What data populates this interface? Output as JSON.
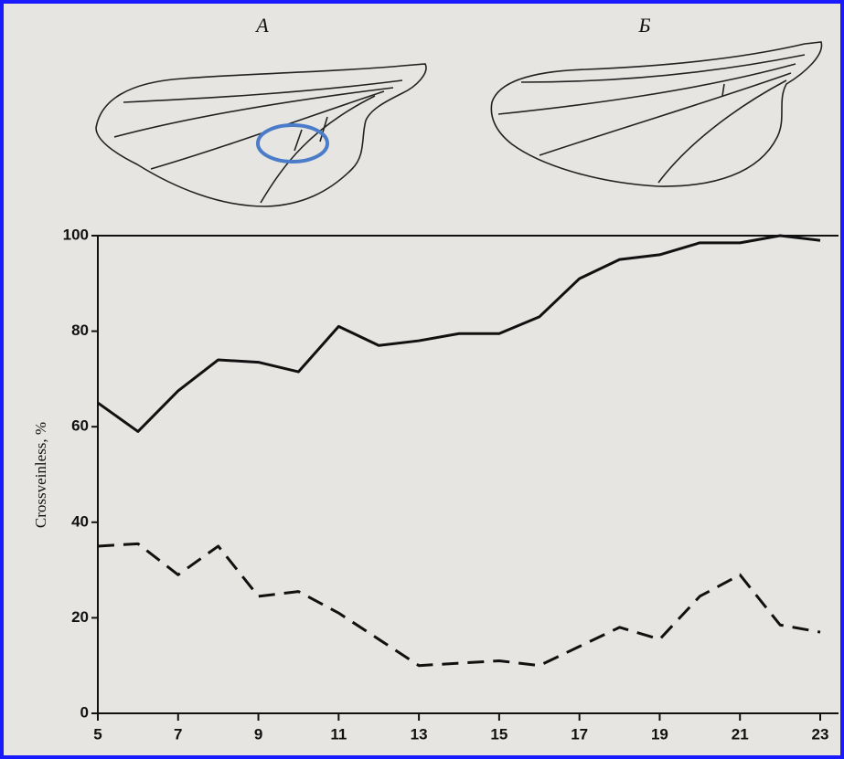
{
  "chart_data": {
    "type": "line",
    "panel_labels": [
      "А",
      "Б"
    ],
    "ylabel": "Crossveinless, %",
    "x": [
      5,
      6,
      7,
      8,
      9,
      10,
      11,
      12,
      13,
      14,
      15,
      16,
      17,
      18,
      19,
      20,
      21,
      22,
      23
    ],
    "series": [
      {
        "color": "#111111",
        "linestyle": "solid",
        "values": [
          65,
          59,
          67.5,
          74,
          73.5,
          71.5,
          81,
          77,
          78,
          79.5,
          79.5,
          83,
          91,
          95,
          96,
          98.5,
          98.5,
          100,
          99
        ]
      },
      {
        "color": "#111111",
        "linestyle": "dashed",
        "values": [
          35,
          35.5,
          29,
          35,
          24.5,
          25.5,
          21,
          15.5,
          10,
          10.5,
          11,
          10,
          14,
          18,
          15.5,
          24.5,
          29,
          18.5,
          17
        ]
      }
    ],
    "xlim": [
      5,
      23
    ],
    "xticks": [
      5,
      7,
      9,
      11,
      13,
      15,
      17,
      19,
      21,
      23
    ],
    "ylim": [
      0,
      100
    ],
    "yticks": [
      0,
      20,
      40,
      60,
      80,
      100
    ]
  }
}
